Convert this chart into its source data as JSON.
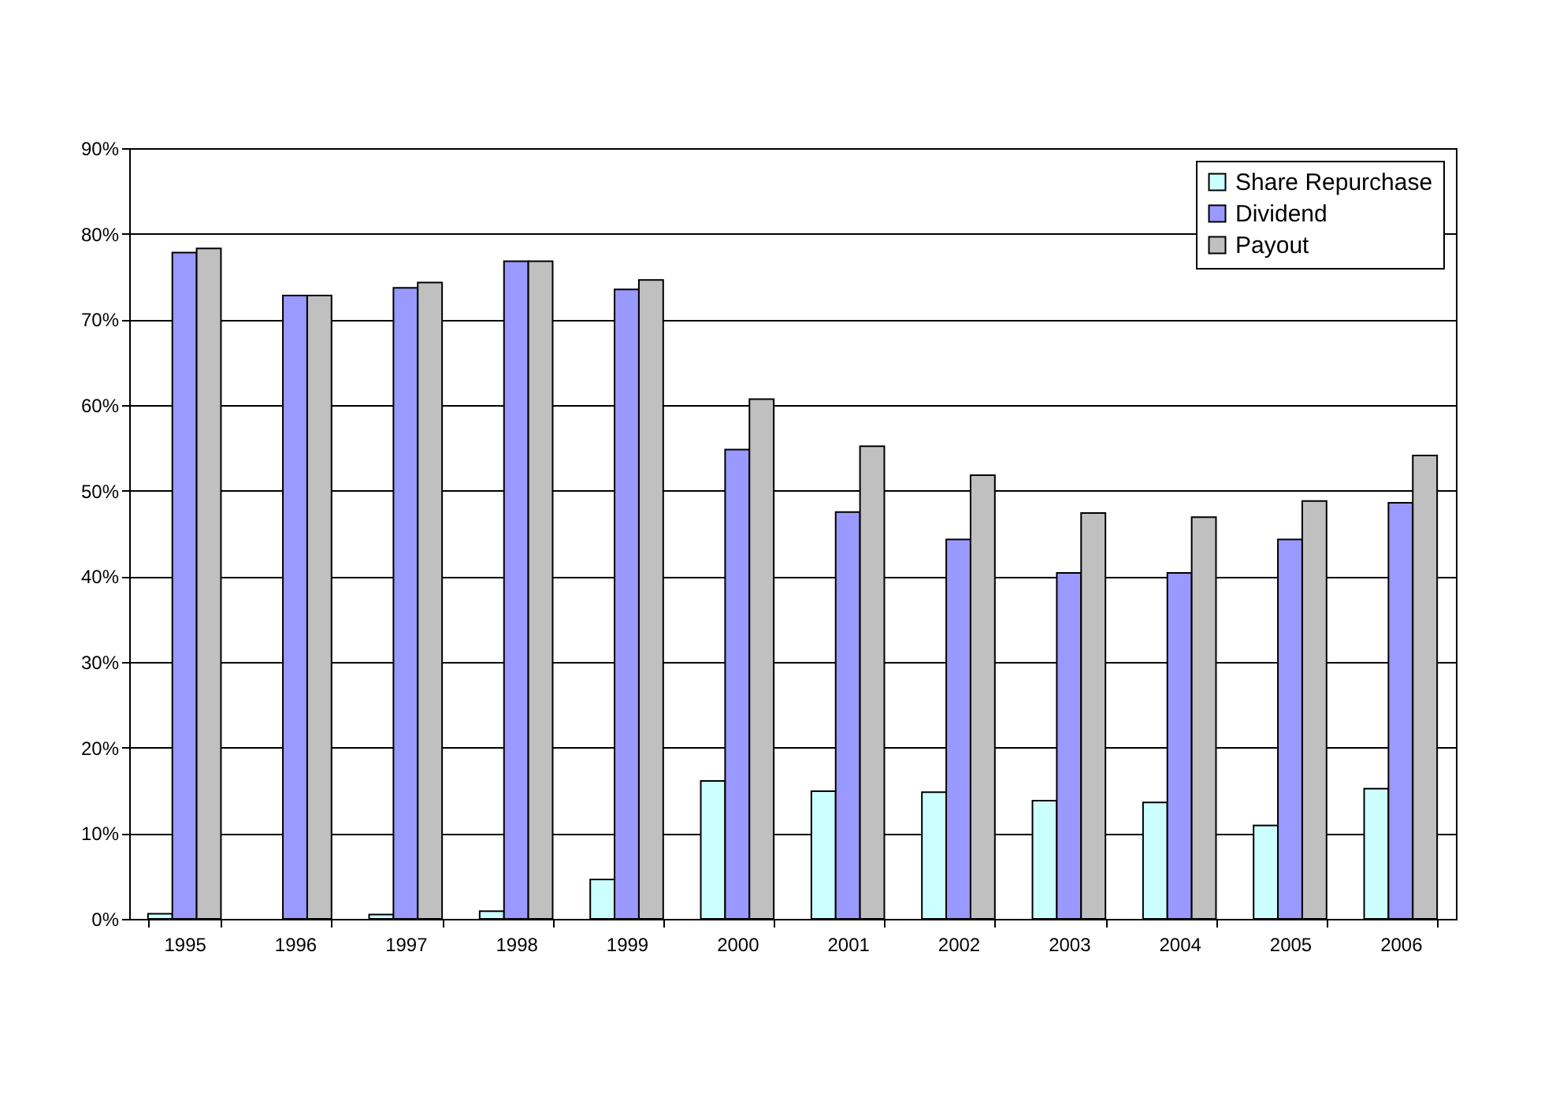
{
  "chart_data": {
    "type": "bar",
    "categories": [
      "1995",
      "1996",
      "1997",
      "1998",
      "1999",
      "2000",
      "2001",
      "2002",
      "2003",
      "2004",
      "2005",
      "2006"
    ],
    "series": [
      {
        "name": "Share Repurchase",
        "color": "#ccffff",
        "values": [
          0.6,
          null,
          0.5,
          0.9,
          4.6,
          16.1,
          14.9,
          14.8,
          13.8,
          13.6,
          10.9,
          15.2
        ]
      },
      {
        "name": "Dividend",
        "color": "#9999ff",
        "values": [
          77.8,
          72.8,
          73.7,
          76.8,
          73.5,
          54.8,
          47.5,
          44.3,
          40.4,
          40.4,
          44.3,
          48.6
        ]
      },
      {
        "name": "Payout",
        "color": "#c0c0c0",
        "values": [
          78.3,
          72.8,
          74.3,
          76.8,
          74.6,
          60.7,
          55.2,
          51.8,
          47.4,
          46.9,
          48.8,
          54.1
        ]
      }
    ],
    "ylim": [
      0,
      90
    ],
    "yticks": [
      {
        "value": 0,
        "label": "0%"
      },
      {
        "value": 10,
        "label": "10%"
      },
      {
        "value": 20,
        "label": "20%"
      },
      {
        "value": 30,
        "label": "30%"
      },
      {
        "value": 40,
        "label": "40%"
      },
      {
        "value": 50,
        "label": "50%"
      },
      {
        "value": 60,
        "label": "60%"
      },
      {
        "value": 70,
        "label": "70%"
      },
      {
        "value": 80,
        "label": "80%"
      },
      {
        "value": 90,
        "label": "90%"
      }
    ],
    "grid": "y",
    "legend": "top right"
  }
}
